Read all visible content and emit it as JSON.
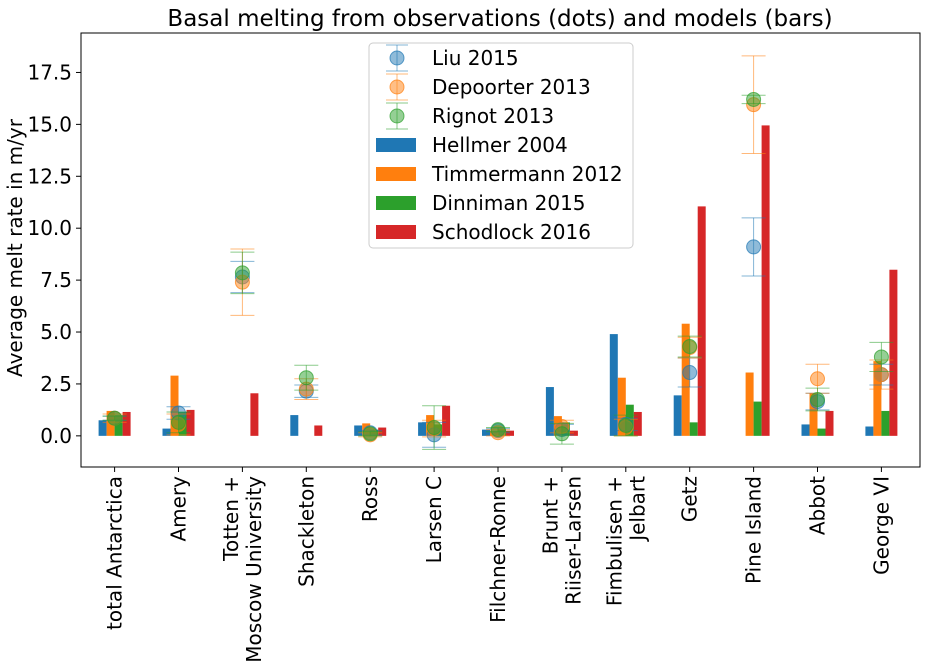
{
  "chart_data": {
    "type": "bar",
    "title": "Basal melting from observations (dots) and models (bars)",
    "ylabel": "Average melt rate in m/yr",
    "xlabel": "",
    "ylim": [
      -1.5,
      19.4
    ],
    "yticks": [
      0.0,
      2.5,
      5.0,
      7.5,
      10.0,
      12.5,
      15.0,
      17.5
    ],
    "ytick_labels": [
      "0.0",
      "2.5",
      "5.0",
      "7.5",
      "10.0",
      "12.5",
      "15.0",
      "17.5"
    ],
    "grid": false,
    "legend_position": "top-center",
    "categories": [
      [
        "total Antarctica"
      ],
      [
        "Amery"
      ],
      [
        "Totten +",
        "Moscow University"
      ],
      [
        "Shackleton"
      ],
      [
        "Ross"
      ],
      [
        "Larsen C"
      ],
      [
        "Filchner-Ronne"
      ],
      [
        "Brunt +",
        "Riiser-Larsen"
      ],
      [
        "Fimbulisen +",
        "Jelbart"
      ],
      [
        "Getz"
      ],
      [
        "Pine Island"
      ],
      [
        "Abbot"
      ],
      [
        "George VI"
      ]
    ],
    "bar_series": [
      {
        "name": "Hellmer 2004",
        "color": "#1f77b4",
        "values": [
          0.75,
          0.35,
          0,
          1.0,
          0.5,
          0.65,
          0.3,
          2.35,
          4.9,
          1.95,
          0,
          0.55,
          0.45
        ]
      },
      {
        "name": "Timmermann 2012",
        "color": "#ff7f0e",
        "values": [
          1.2,
          2.9,
          0,
          0,
          0.6,
          1.0,
          0.25,
          0.95,
          2.8,
          5.4,
          3.05,
          2.05,
          3.6
        ]
      },
      {
        "name": "Dinniman 2015",
        "color": "#2ca02c",
        "values": [
          1.0,
          1.15,
          0,
          0,
          0.3,
          0.55,
          0.35,
          0.65,
          1.5,
          0.65,
          1.65,
          0.35,
          1.2
        ]
      },
      {
        "name": "Schodlock 2016",
        "color": "#d62728",
        "values": [
          1.15,
          1.25,
          2.05,
          0.5,
          0.4,
          1.45,
          0.25,
          0.25,
          1.15,
          11.05,
          14.95,
          1.2,
          8.0
        ]
      }
    ],
    "point_series": [
      {
        "name": "Liu 2015",
        "color": "#1f77b4",
        "values": [
          0.85,
          1.1,
          7.65,
          2.15,
          0.15,
          0.05,
          0.25,
          0.3,
          0.55,
          3.05,
          9.1,
          1.65,
          2.95
        ],
        "errors": [
          0.1,
          0.3,
          0.75,
          0.3,
          0.1,
          0.6,
          0.1,
          0.25,
          0.3,
          0.7,
          1.4,
          0.4,
          0.5
        ]
      },
      {
        "name": "Depoorter 2013",
        "color": "#ff7f0e",
        "values": [
          0.85,
          0.55,
          7.4,
          2.25,
          0.05,
          0.35,
          0.15,
          0.45,
          0.4,
          4.25,
          15.95,
          2.75,
          2.95
        ],
        "errors": [
          0.2,
          0.5,
          1.6,
          0.5,
          0.1,
          0.4,
          0.15,
          0.3,
          0.4,
          0.5,
          2.35,
          0.7,
          0.7
        ]
      },
      {
        "name": "Rignot 2013",
        "color": "#2ca02c",
        "values": [
          0.85,
          0.65,
          7.85,
          2.8,
          0.1,
          0.4,
          0.3,
          0.1,
          0.5,
          4.3,
          16.2,
          1.75,
          3.8
        ],
        "errors": [
          0.1,
          0.5,
          1.0,
          0.6,
          0.1,
          1.05,
          0.1,
          0.5,
          0.5,
          0.5,
          0.2,
          0.55,
          0.7
        ]
      }
    ],
    "legend_order": [
      "Liu 2015",
      "Depoorter 2013",
      "Rignot 2013",
      "Hellmer 2004",
      "Timmermann 2012",
      "Dinniman 2015",
      "Schodlock 2016"
    ]
  }
}
